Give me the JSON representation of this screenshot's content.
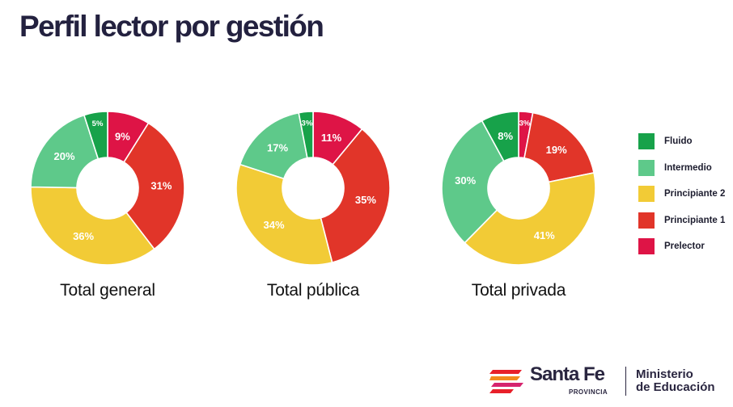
{
  "page": {
    "title": "Perfil lector por gestión"
  },
  "colors": {
    "Fluido": "#17a24a",
    "Intermedio": "#5ec98a",
    "Principiante 2": "#f2cb36",
    "Principiante 1": "#e13529",
    "Prelector": "#de1446"
  },
  "chart_data": [
    {
      "type": "pie",
      "title": "Total general",
      "categories": [
        "Prelector",
        "Principiante 1",
        "Principiante 2",
        "Intermedio",
        "Fluido"
      ],
      "values": [
        9,
        31,
        36,
        20,
        5
      ],
      "value_labels": [
        "9%",
        "31%",
        "36%",
        "20%",
        "5%"
      ],
      "donut": true
    },
    {
      "type": "pie",
      "title": "Total pública",
      "categories": [
        "Prelector",
        "Principiante 1",
        "Principiante 2",
        "Intermedio",
        "Fluido"
      ],
      "values": [
        11,
        35,
        34,
        17,
        3
      ],
      "value_labels": [
        "11%",
        "35%",
        "34%",
        "17%",
        "3%"
      ],
      "donut": true
    },
    {
      "type": "pie",
      "title": "Total privada",
      "categories": [
        "Prelector",
        "Principiante 1",
        "Principiante 2",
        "Intermedio",
        "Fluido"
      ],
      "values": [
        3,
        19,
        41,
        30,
        8
      ],
      "value_labels": [
        "3%",
        "19%",
        "41%",
        "30%",
        "8%"
      ],
      "donut": true
    }
  ],
  "legend": {
    "position": "right",
    "items": [
      {
        "label": "Fluido",
        "icon": "square"
      },
      {
        "label": "Intermedio",
        "icon": "square"
      },
      {
        "label": "Principiante 2",
        "icon": "square"
      },
      {
        "label": "Principiante 1",
        "icon": "square"
      },
      {
        "label": "Prelector",
        "icon": "square"
      }
    ]
  },
  "footer": {
    "brand": "Santa Fe",
    "brand_sub": "PROVINCIA",
    "ministry_line1": "Ministerio",
    "ministry_line2": "de Educación",
    "logo_colors": [
      "#e8202a",
      "#f28b1e",
      "#d6246e"
    ]
  }
}
